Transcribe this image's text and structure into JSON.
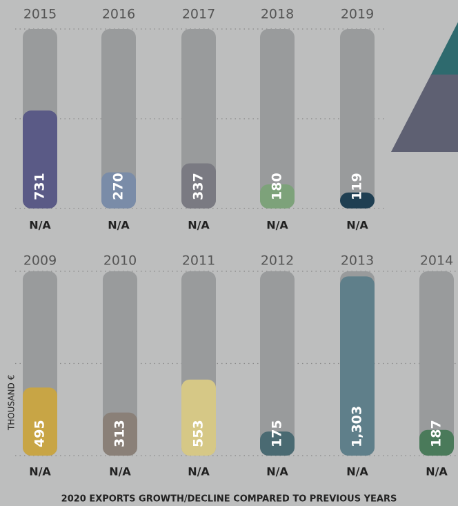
{
  "chart_data": [
    {
      "type": "bar",
      "categories": [
        "2015",
        "2016",
        "2017",
        "2018",
        "2019"
      ],
      "values": [
        731,
        270,
        337,
        180,
        119
      ],
      "colors": [
        "#5a5a86",
        "#7a8ca8",
        "#7a7a82",
        "#7da27a",
        "#1f3f52"
      ],
      "annotations": [
        "N/A",
        "N/A",
        "N/A",
        "N/A",
        "N/A"
      ],
      "ylim": [
        0,
        1340
      ]
    },
    {
      "type": "bar",
      "categories": [
        "2009",
        "2010",
        "2011",
        "2012",
        "2013",
        "2014"
      ],
      "values": [
        495,
        313,
        553,
        175,
        1303,
        187
      ],
      "value_labels": [
        "495",
        "313",
        "553",
        "175",
        "1,303",
        "187"
      ],
      "colors": [
        "#c8a545",
        "#8a8078",
        "#d6c886",
        "#4a6a72",
        "#5f7f8a",
        "#4a7a5a"
      ],
      "annotations": [
        "N/A",
        "N/A",
        "N/A",
        "N/A",
        "N/A",
        "N/A"
      ],
      "ylabel": "THOUSAND €",
      "ylim": [
        0,
        1340
      ]
    }
  ],
  "footer": "2020 EXPORTS GROWTH/DECLINE COMPARED TO PREVIOUS YEARS"
}
